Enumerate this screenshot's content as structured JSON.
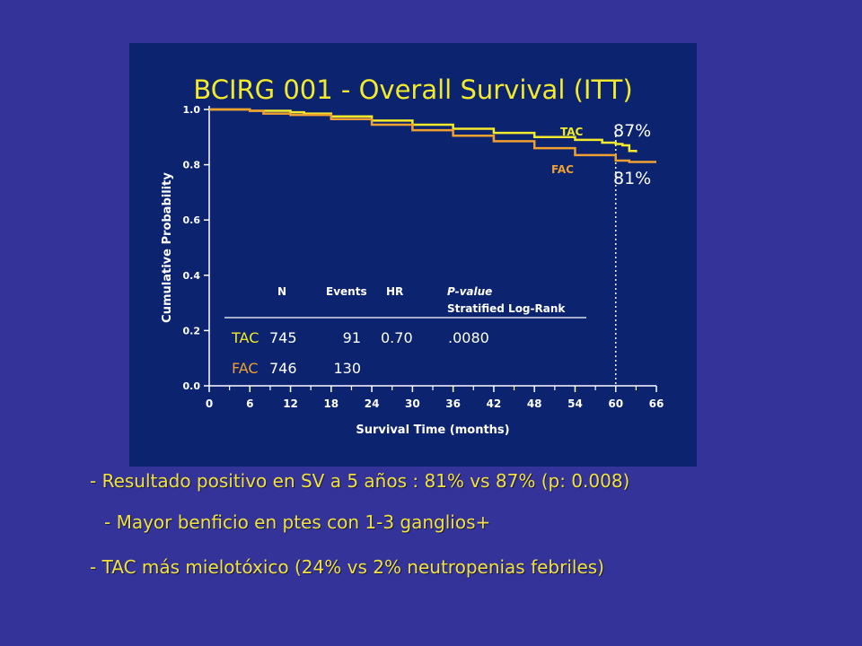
{
  "chart_data": {
    "type": "line",
    "title": "BCIRG 001 - Overall Survival (ITT)",
    "xlabel": "Survival Time (months)",
    "ylabel": "Cumulative Probability",
    "xlim": [
      0,
      66
    ],
    "ylim": [
      0.0,
      1.0
    ],
    "x_ticks": [
      0,
      6,
      12,
      18,
      24,
      30,
      36,
      42,
      48,
      54,
      60,
      66
    ],
    "y_ticks": [
      "0.0",
      "0.2",
      "0.4",
      "0.6",
      "0.8",
      "1.0"
    ],
    "grid": false,
    "reference_line_x": 60,
    "series": [
      {
        "name": "TAC",
        "color": "#f2ea2a",
        "x": [
          0,
          6,
          12,
          14,
          18,
          24,
          30,
          36,
          42,
          48,
          54,
          58,
          60,
          61,
          62,
          63
        ],
        "y": [
          1.0,
          0.995,
          0.99,
          0.985,
          0.975,
          0.96,
          0.945,
          0.93,
          0.915,
          0.9,
          0.89,
          0.88,
          0.875,
          0.87,
          0.85,
          0.845
        ],
        "end_label": "87%"
      },
      {
        "name": "FAC",
        "color": "#f0a030",
        "x": [
          0,
          6,
          8,
          12,
          18,
          24,
          30,
          36,
          42,
          48,
          54,
          60,
          62,
          66
        ],
        "y": [
          1.0,
          0.995,
          0.985,
          0.98,
          0.965,
          0.945,
          0.925,
          0.905,
          0.885,
          0.86,
          0.835,
          0.815,
          0.81,
          0.81
        ],
        "end_label": "81%"
      }
    ],
    "stats_table": {
      "headers": [
        "N",
        "Events",
        "HR",
        "P-value",
        "Stratified Log-Rank"
      ],
      "rows": [
        {
          "arm": "TAC",
          "n": "745",
          "events": "91",
          "hr": "0.70",
          "p": ".0080"
        },
        {
          "arm": "FAC",
          "n": "746",
          "events": "130",
          "hr": "",
          "p": ""
        }
      ]
    }
  },
  "bullets": [
    "- Resultado positivo en SV a 5 años : 81% vs 87% (p: 0.008)",
    "- Mayor benficio en ptes con 1-3 ganglios+",
    "- TAC más mielotóxico (24% vs 2% neutropenias febriles)"
  ]
}
